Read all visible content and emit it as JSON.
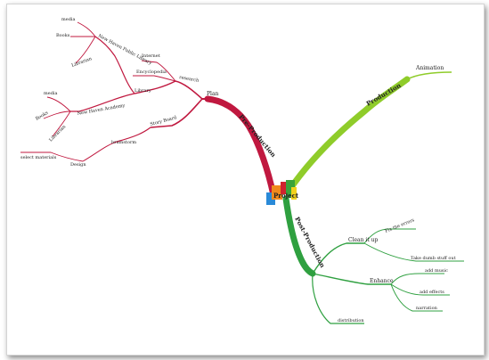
{
  "colors": {
    "pre_production": "#c0183f",
    "production": "#8fcc2a",
    "post_production": "#2fa040",
    "cube_orange": "#f08a1c",
    "cube_red": "#d0232e",
    "cube_blue": "#2a8ad8",
    "cube_yellow": "#f2d21e",
    "cube_green": "#3aa33a"
  },
  "central": {
    "label": "Project",
    "icon": "cube-stack-icon"
  },
  "pre_production": {
    "label": "Pre-Production",
    "plan": "Plan",
    "research": "research",
    "internet": "Internet",
    "encyclopedia": "Encyclopedia",
    "library": "Library",
    "new_haven_public_library": "New Haven Public Library",
    "nhpl_media": "media",
    "nhpl_books": "Books",
    "nhpl_librarian": "Librarian",
    "new_haven_academy": "New Haven Academy",
    "nha_media": "media",
    "nha_books": "Books",
    "nha_librarian": "Librarian",
    "story_board": "Story Board",
    "brainstorm": "brainstorm",
    "design": "Design",
    "select_materials": "select materials"
  },
  "production": {
    "label": "Production",
    "animation": "Animation"
  },
  "post_production": {
    "label": "Post-Production",
    "clean_it_up": "Clean it up",
    "fix_errors": "Fix the errors",
    "take_dumb_stuff_out": "Take dumb stuff out",
    "enhance": "Enhance",
    "add_music": "add music",
    "add_effects": "add effects",
    "narration": "narration",
    "distribution": "distribution"
  }
}
